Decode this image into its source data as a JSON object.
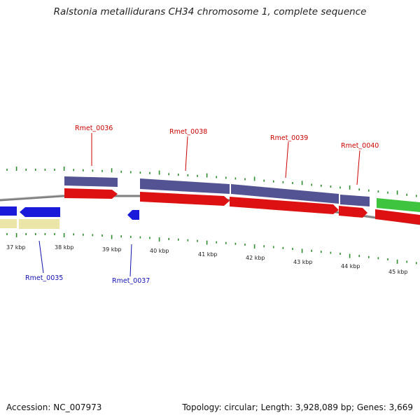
{
  "title": "Ralstonia metallidurans CH34 chromosome 1, complete sequence",
  "accession": "Accession: NC_007973",
  "summary": "Topology: circular; Length: 3,928,089 bp; Genes: 3,669",
  "colors": {
    "forward_gene": "#dd1111",
    "reverse_gene": "#1a1adb",
    "forward_label": "#cc0000",
    "reverse_label": "#1010b0",
    "cds_forward": "#535394",
    "cds_reverse": "#ece5a8",
    "rna_gene": "#3ec43e",
    "tick": "#2e8b2e",
    "backbone": "#808080"
  },
  "kbp_labels": [
    "37 kbp",
    "38 kbp",
    "39 kbp",
    "40 kbp",
    "41 kbp",
    "42 kbp",
    "43 kbp",
    "44 kbp",
    "45 kbp"
  ],
  "forward_gene_labels": [
    "Rmet_0036",
    "Rmet_0038",
    "Rmet_0039",
    "Rmet_0040"
  ],
  "reverse_gene_labels": [
    "Rmet_0035",
    "Rmet_0037"
  ]
}
